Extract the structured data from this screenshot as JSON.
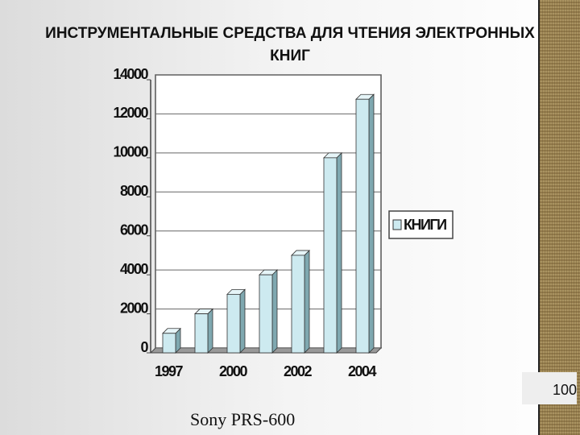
{
  "chart_data": {
    "type": "bar3d",
    "title": "ИНСТРУМЕНТАЛЬНЫЕ СРЕДСТВА ДЛЯ ЧТЕНИЯ ЭЛЕКТРОННЫХ КНИГ",
    "categories": [
      "1997",
      null,
      "2000",
      null,
      "2002",
      null,
      "2004"
    ],
    "series": [
      {
        "name": "КНИГИ",
        "color": "#cdeaf0",
        "values": [
          1000,
          2000,
          3000,
          4000,
          5000,
          10000,
          13000
        ]
      }
    ],
    "ylim": [
      0,
      14000
    ],
    "yticks": [
      0,
      2000,
      4000,
      6000,
      8000,
      10000,
      12000,
      14000
    ],
    "grid": true,
    "legend": "right"
  },
  "caption": "Sony PRS-600",
  "page_number": "100"
}
